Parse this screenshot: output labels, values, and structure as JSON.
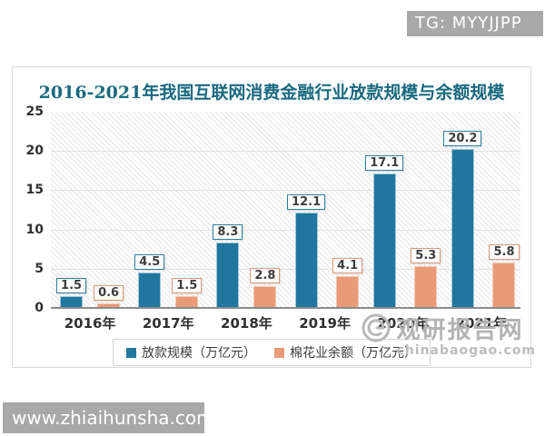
{
  "badge": {
    "text": "TG: MYYJJPP"
  },
  "footer": {
    "url": "www.zhiaihunsha.com"
  },
  "watermark": {
    "name": "观研报告网",
    "site": "chinabaogao.com"
  },
  "chart_data": {
    "type": "bar",
    "title": "2016-2021年我国互联网消费金融行业放款规模与余额规模",
    "categories": [
      "2016年",
      "2017年",
      "2018年",
      "2019年",
      "2020年",
      "2021年"
    ],
    "series": [
      {
        "name": "放款规模（万亿元）",
        "values": [
          1.5,
          4.5,
          8.3,
          12.1,
          17.1,
          20.2
        ],
        "color": "#20769e",
        "edge": "#9fc8da",
        "label_border": "#2e7d9e"
      },
      {
        "name": "棉花业余额（万亿元）",
        "values": [
          0.6,
          1.5,
          2.8,
          4.1,
          5.3,
          5.8
        ],
        "color": "#e99a77",
        "edge": "#f4c9b2",
        "label_border": "#dd9878"
      }
    ],
    "xlabel": "",
    "ylabel": "",
    "ylim": [
      0,
      25
    ],
    "yticks": [
      25,
      20,
      15,
      10,
      5,
      0
    ],
    "grid": true,
    "legend_position": "bottom"
  }
}
